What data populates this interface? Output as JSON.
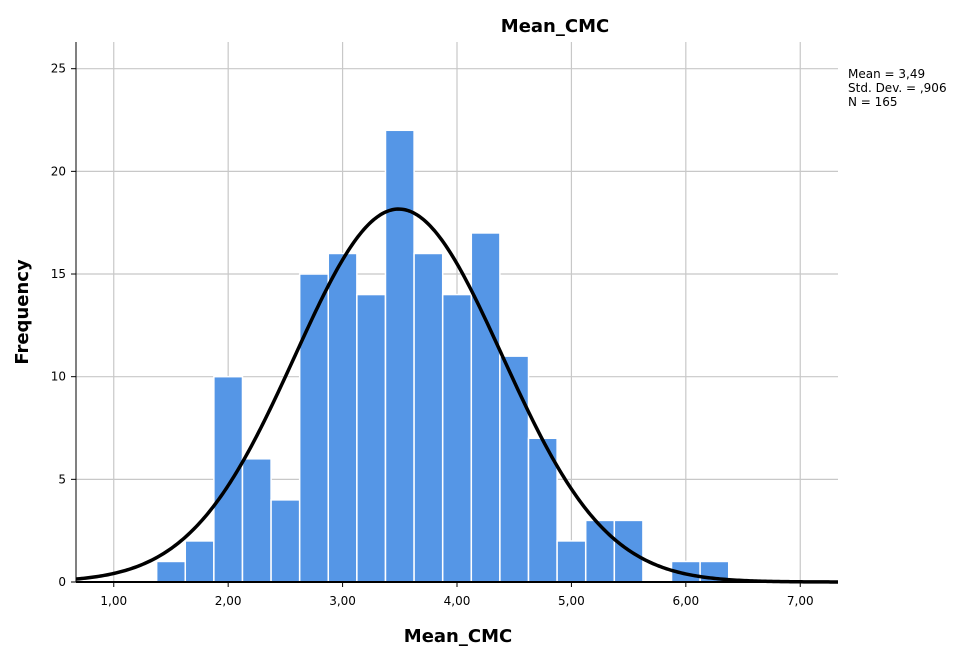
{
  "chart_data": {
    "type": "bar",
    "title": "Mean_CMC",
    "xlabel": "Mean_CMC",
    "ylabel": "Frequency",
    "xlim": [
      0.67,
      7.33
    ],
    "ylim": [
      0,
      26.3
    ],
    "x_ticks": [
      1,
      2,
      3,
      4,
      5,
      6,
      7
    ],
    "x_tick_labels": [
      "1,00",
      "2,00",
      "3,00",
      "4,00",
      "5,00",
      "6,00",
      "7,00"
    ],
    "y_ticks": [
      0,
      5,
      10,
      15,
      20,
      25
    ],
    "y_tick_labels": [
      "0",
      "5",
      "10",
      "15",
      "20",
      "25"
    ],
    "grid": true,
    "bin_width": 0.25,
    "bins": [
      {
        "x0": 1.375,
        "value": 1
      },
      {
        "x0": 1.625,
        "value": 2
      },
      {
        "x0": 1.875,
        "value": 10
      },
      {
        "x0": 2.125,
        "value": 6
      },
      {
        "x0": 2.375,
        "value": 4
      },
      {
        "x0": 2.625,
        "value": 15
      },
      {
        "x0": 2.875,
        "value": 16
      },
      {
        "x0": 3.125,
        "value": 14
      },
      {
        "x0": 3.375,
        "value": 22
      },
      {
        "x0": 3.625,
        "value": 16
      },
      {
        "x0": 3.875,
        "value": 14
      },
      {
        "x0": 4.125,
        "value": 17
      },
      {
        "x0": 4.375,
        "value": 11
      },
      {
        "x0": 4.625,
        "value": 7
      },
      {
        "x0": 4.875,
        "value": 2
      },
      {
        "x0": 5.125,
        "value": 3
      },
      {
        "x0": 5.375,
        "value": 3
      },
      {
        "x0": 5.625,
        "value": 0
      },
      {
        "x0": 5.875,
        "value": 1
      },
      {
        "x0": 6.125,
        "value": 1
      }
    ],
    "bar_color": "#5596e6",
    "bar_edge_color": "#ffffff",
    "normal_curve": {
      "mean": 3.49,
      "std_dev": 0.906,
      "n": 165,
      "color": "#000000"
    },
    "stats": {
      "mean_text": "Mean = 3,49",
      "std_text": "Std. Dev. = ,906",
      "n_text": "N = 165"
    }
  }
}
